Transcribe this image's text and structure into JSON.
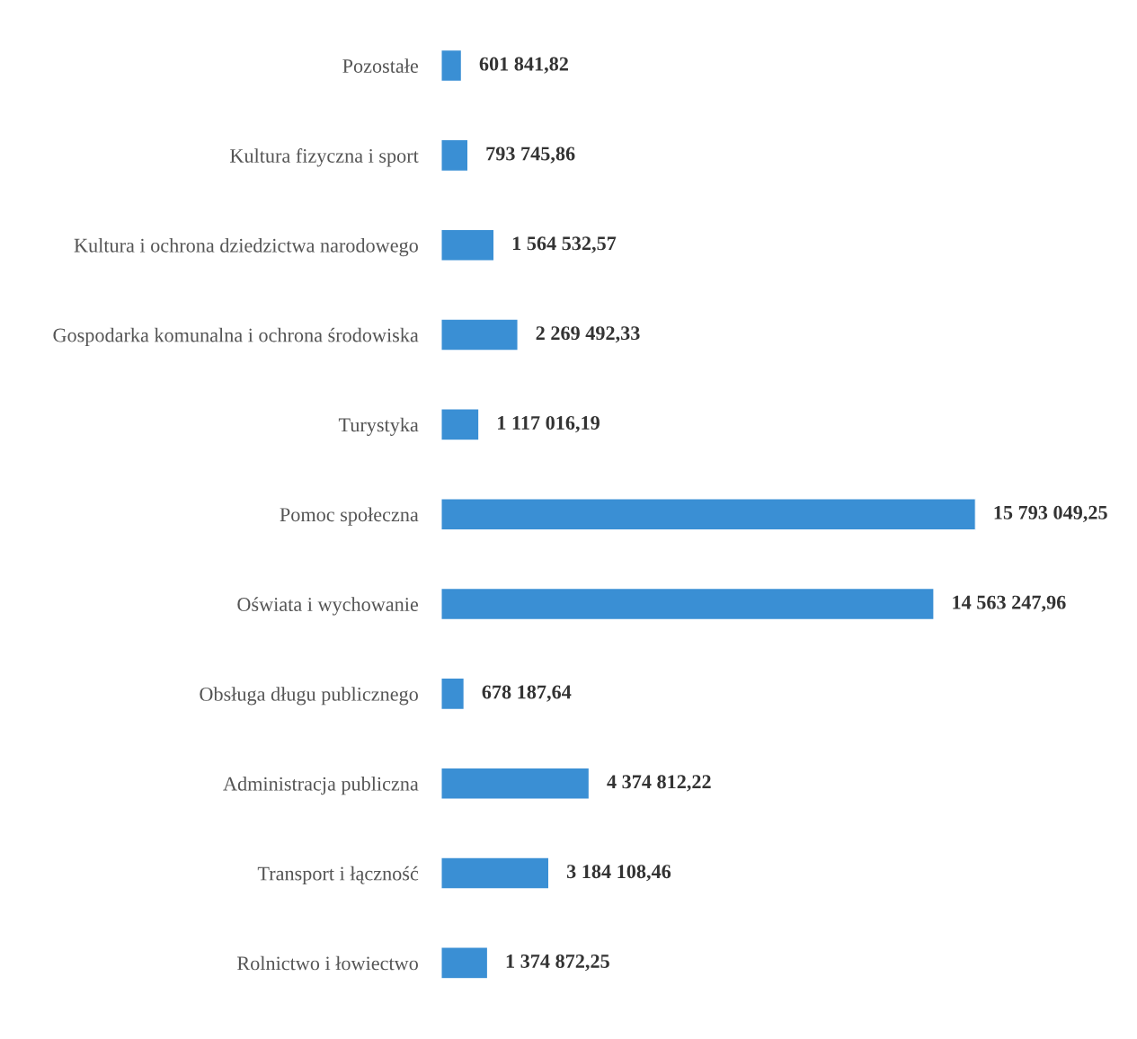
{
  "chart_data": {
    "type": "bar",
    "orientation": "horizontal",
    "categories": [
      "Pozostałe",
      "Kultura fizyczna i sport",
      "Kultura i ochrona dziedzictwa narodowego",
      "Gospodarka komunalna i ochrona środowiska",
      "Turystyka",
      "Pomoc społeczna",
      "Oświata i wychowanie",
      "Obsługa długu publicznego",
      "Administracja publiczna",
      "Transport i łączność",
      "Rolnictwo i łowiectwo"
    ],
    "values": [
      601841.82,
      793745.86,
      1564532.57,
      2269492.33,
      1117016.19,
      15793049.25,
      14563247.96,
      678187.64,
      4374812.22,
      3184108.46,
      1374872.25
    ],
    "value_labels": [
      "601 841,82",
      "793 745,86",
      "1 564 532,57",
      "2 269 492,33",
      "1 117 016,19",
      "15 793 049,25",
      "14 563 247,96",
      "678 187,64",
      "4 374 812,22",
      "3 184 108,46",
      "1 374 872,25"
    ],
    "color": "#3a8fd4",
    "tick_labels": "y",
    "grid": false,
    "legend": false
  }
}
